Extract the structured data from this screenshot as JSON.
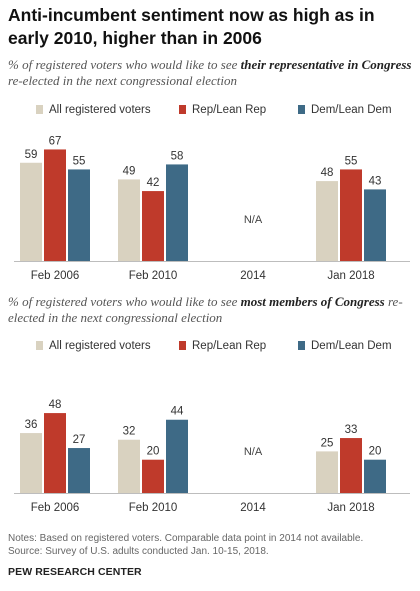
{
  "title": "Anti-incumbent sentiment now as high as in early 2010, higher than in 2006",
  "legend": [
    {
      "label": "All registered voters",
      "color": "#d9d2c0"
    },
    {
      "label": "Rep/Lean Rep",
      "color": "#bf3a2b"
    },
    {
      "label": "Dem/Lean Dem",
      "color": "#3e6a86"
    }
  ],
  "chart_data": [
    {
      "type": "bar",
      "subtitle_before": "% of registered voters who would like to see ",
      "subtitle_emphasis": "their representative in Congress",
      "subtitle_after": " re-elected in the next congressional election",
      "categories": [
        "Feb 2006",
        "Feb 2010",
        "2014",
        "Jan 2018"
      ],
      "series": [
        {
          "name": "All registered voters",
          "values": [
            59,
            49,
            null,
            48
          ]
        },
        {
          "name": "Rep/Lean Rep",
          "values": [
            67,
            42,
            null,
            55
          ]
        },
        {
          "name": "Dem/Lean Dem",
          "values": [
            55,
            58,
            null,
            43
          ]
        }
      ],
      "missing_label": "N/A",
      "ylim": [
        0,
        100
      ]
    },
    {
      "type": "bar",
      "subtitle_before": "% of registered voters who would like to see ",
      "subtitle_emphasis": "most members of Congress",
      "subtitle_after": " re-elected in the next congressional election",
      "categories": [
        "Feb 2006",
        "Feb 2010",
        "2014",
        "Jan 2018"
      ],
      "series": [
        {
          "name": "All registered voters",
          "values": [
            36,
            32,
            null,
            25
          ]
        },
        {
          "name": "Rep/Lean Rep",
          "values": [
            48,
            20,
            null,
            33
          ]
        },
        {
          "name": "Dem/Lean Dem",
          "values": [
            27,
            44,
            null,
            20
          ]
        }
      ],
      "missing_label": "N/A",
      "ylim": [
        0,
        100
      ]
    }
  ],
  "notes": "Notes: Based on registered voters. Comparable data point in 2014 not available.",
  "source": "Source: Survey of U.S. adults conducted Jan. 10-15, 2018.",
  "org": "PEW RESEARCH CENTER"
}
